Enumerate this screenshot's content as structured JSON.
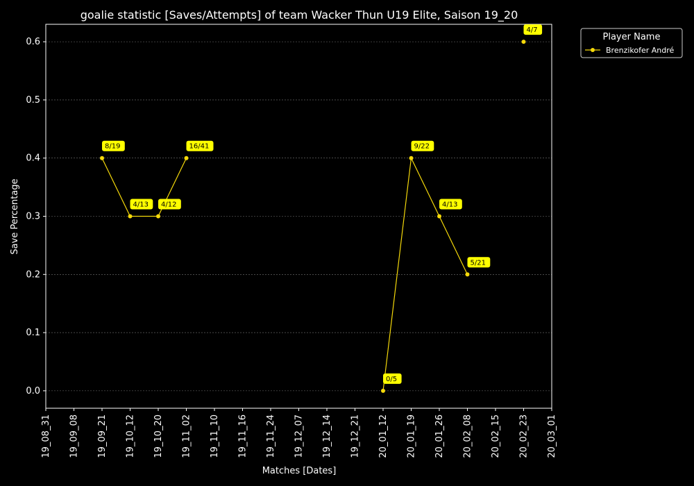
{
  "chart_data": {
    "type": "line",
    "title": "goalie statistic [Saves/Attempts] of team Wacker Thun U19 Elite, Saison 19_20",
    "xlabel": "Matches [Dates]",
    "ylabel": "Save Percentage",
    "x_ticks": [
      "19_08_31",
      "19_09_08",
      "19_09_21",
      "19_10_12",
      "19_10_20",
      "19_11_02",
      "19_11_10",
      "19_11_16",
      "19_11_24",
      "19_12_07",
      "19_12_14",
      "19_12_21",
      "20_01_12",
      "20_01_19",
      "20_01_26",
      "20_02_08",
      "20_02_15",
      "20_02_23",
      "20_03_01"
    ],
    "y_ticks": [
      "0.0",
      "0.1",
      "0.2",
      "0.3",
      "0.4",
      "0.5",
      "0.6"
    ],
    "ylim": [
      -0.03,
      0.63
    ],
    "grid": "horizontal dashed",
    "legend": {
      "title": "Player Name",
      "placement": "outside top-right"
    },
    "colors": {
      "background": "#000000",
      "series": "#f5d90a",
      "annotation_box": "#ffff00",
      "grid": "#777777",
      "axes": "#ffffff"
    },
    "series": [
      {
        "name": "Brenzikofer André",
        "segments": [
          [
            {
              "x": "19_09_21",
              "y": 0.4,
              "label": "8/19"
            },
            {
              "x": "19_10_12",
              "y": 0.3,
              "label": "4/13"
            },
            {
              "x": "19_10_20",
              "y": 0.3,
              "label": "4/12"
            },
            {
              "x": "19_11_02",
              "y": 0.4,
              "label": "16/41"
            }
          ],
          [
            {
              "x": "20_01_12",
              "y": 0.0,
              "label": "0/5"
            },
            {
              "x": "20_01_19",
              "y": 0.4,
              "label": "9/22"
            },
            {
              "x": "20_01_26",
              "y": 0.3,
              "label": "4/13"
            },
            {
              "x": "20_02_08",
              "y": 0.2,
              "label": "5/21"
            }
          ],
          [
            {
              "x": "20_02_23",
              "y": 0.6,
              "label": "4/7"
            }
          ]
        ]
      }
    ]
  }
}
